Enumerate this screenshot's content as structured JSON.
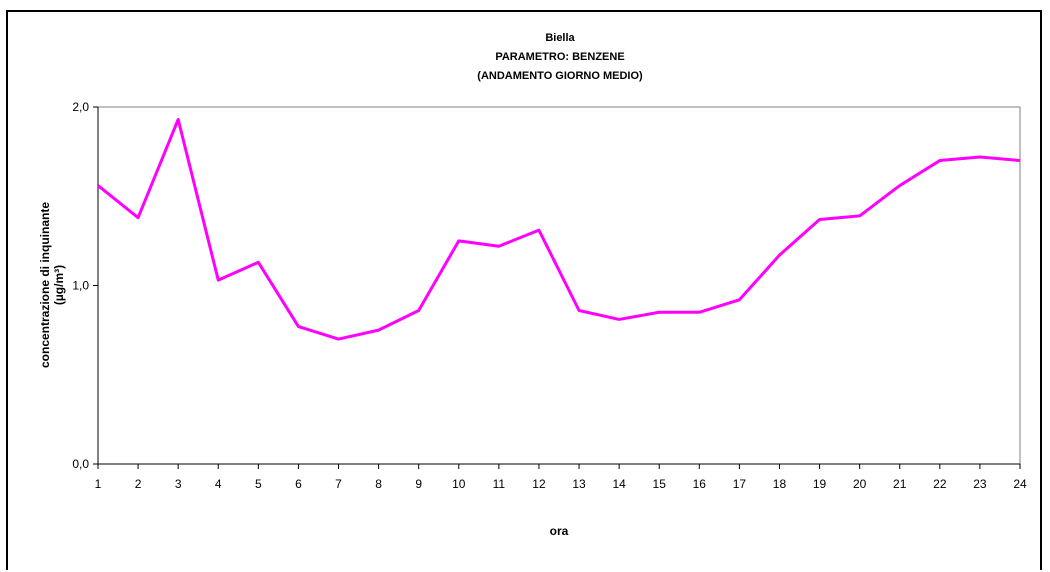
{
  "chart_data": {
    "type": "line",
    "title": [
      "Biella",
      "PARAMETRO: BENZENE",
      "(ANDAMENTO GIORNO MEDIO)"
    ],
    "xlabel": "ora",
    "ylabel": [
      "concentrazione di inquinante",
      "(µg/m³)"
    ],
    "categories": [
      "1",
      "2",
      "3",
      "4",
      "5",
      "6",
      "7",
      "8",
      "9",
      "10",
      "11",
      "12",
      "13",
      "14",
      "15",
      "16",
      "17",
      "18",
      "19",
      "20",
      "21",
      "22",
      "23",
      "24"
    ],
    "values": [
      1.56,
      1.38,
      1.93,
      1.03,
      1.13,
      0.77,
      0.7,
      0.75,
      0.86,
      1.25,
      1.22,
      1.31,
      0.86,
      0.81,
      0.85,
      0.85,
      0.92,
      1.17,
      1.37,
      1.39,
      1.56,
      1.7,
      1.72,
      1.7
    ],
    "ylim": [
      0,
      2
    ],
    "yticks": [
      "0,0",
      "1,0",
      "2,0"
    ],
    "ytick_values": [
      0,
      1,
      2
    ],
    "grid": false,
    "series_color": "#FF00FF"
  }
}
